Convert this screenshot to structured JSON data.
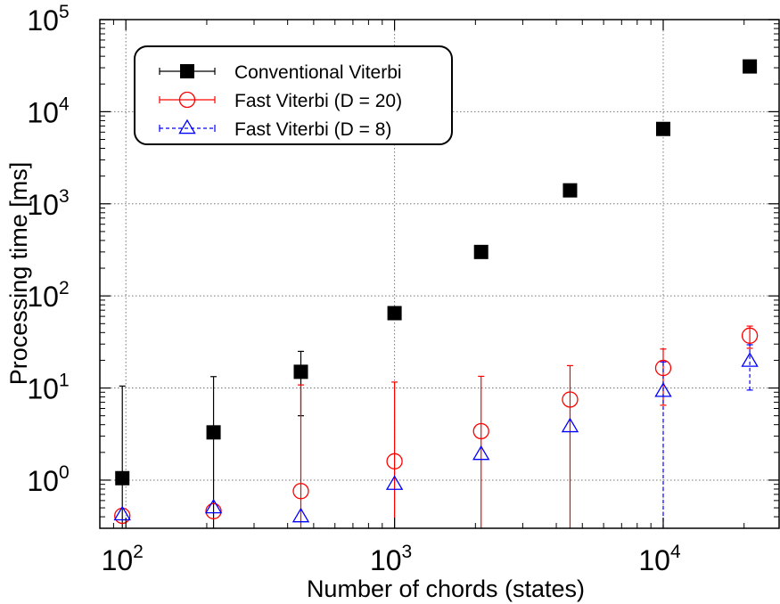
{
  "chart_data": {
    "type": "scatter",
    "xlabel": "Number of chords (states)",
    "ylabel": "Processing time [ms]",
    "x_scale": "log",
    "y_scale": "log",
    "xlim": [
      80,
      27000
    ],
    "ylim": [
      0.3,
      100000
    ],
    "x_ticks": [
      {
        "value": 100,
        "base": "10",
        "exp": "2"
      },
      {
        "value": 1000,
        "base": "10",
        "exp": "3"
      },
      {
        "value": 10000,
        "base": "10",
        "exp": "4"
      }
    ],
    "y_ticks": [
      {
        "value": 1,
        "base": "10",
        "exp": "0"
      },
      {
        "value": 10,
        "base": "10",
        "exp": "1"
      },
      {
        "value": 100,
        "base": "10",
        "exp": "2"
      },
      {
        "value": 1000,
        "base": "10",
        "exp": "3"
      },
      {
        "value": 10000,
        "base": "10",
        "exp": "4"
      },
      {
        "value": 100000,
        "base": "10",
        "exp": "5"
      }
    ],
    "grid": true,
    "legend_position": "top-left",
    "series": [
      {
        "name": "Conventional Viterbi",
        "marker": "filled-square",
        "color": "#000000",
        "line_style": "solid",
        "points": [
          {
            "x": 97,
            "y": 1.05,
            "err_low": 0.3,
            "err_high": 10.5
          },
          {
            "x": 212,
            "y": 3.3,
            "err_low": 0.3,
            "err_high": 13.3
          },
          {
            "x": 448,
            "y": 15,
            "err_low": 5,
            "err_high": 25
          },
          {
            "x": 1000,
            "y": 65
          },
          {
            "x": 2100,
            "y": 300
          },
          {
            "x": 4500,
            "y": 1400
          },
          {
            "x": 10000,
            "y": 6500
          },
          {
            "x": 21000,
            "y": 31000
          }
        ]
      },
      {
        "name": "Fast Viterbi (D = 20)",
        "marker": "open-circle",
        "color": "#ff0000",
        "line_style": "solid",
        "points": [
          {
            "x": 97,
            "y": 0.41
          },
          {
            "x": 212,
            "y": 0.46
          },
          {
            "x": 448,
            "y": 0.76,
            "err_low": 0.3,
            "err_high": 10.8
          },
          {
            "x": 1000,
            "y": 1.6,
            "err_low": 0.3,
            "err_high": 11.6
          },
          {
            "x": 2100,
            "y": 3.4,
            "err_low": 0.3,
            "err_high": 13.4
          },
          {
            "x": 4500,
            "y": 7.5,
            "err_low": 0.3,
            "err_high": 17.5
          },
          {
            "x": 10000,
            "y": 16.5,
            "err_low": 6.5,
            "err_high": 26.5
          },
          {
            "x": 21000,
            "y": 37,
            "err_low": 27,
            "err_high": 47
          }
        ]
      },
      {
        "name": "Fast Viterbi (D = 8)",
        "marker": "open-triangle",
        "color": "#0000ff",
        "line_style": "dashed",
        "points": [
          {
            "x": 97,
            "y": 0.42
          },
          {
            "x": 212,
            "y": 0.5
          },
          {
            "x": 448,
            "y": 0.4
          },
          {
            "x": 1000,
            "y": 0.9
          },
          {
            "x": 2100,
            "y": 1.9
          },
          {
            "x": 4500,
            "y": 3.8
          },
          {
            "x": 10000,
            "y": 9.2,
            "err_low": 0.3,
            "err_high": 19.2
          },
          {
            "x": 21000,
            "y": 19.5,
            "err_low": 9.5,
            "err_high": 29.5
          }
        ]
      }
    ]
  }
}
